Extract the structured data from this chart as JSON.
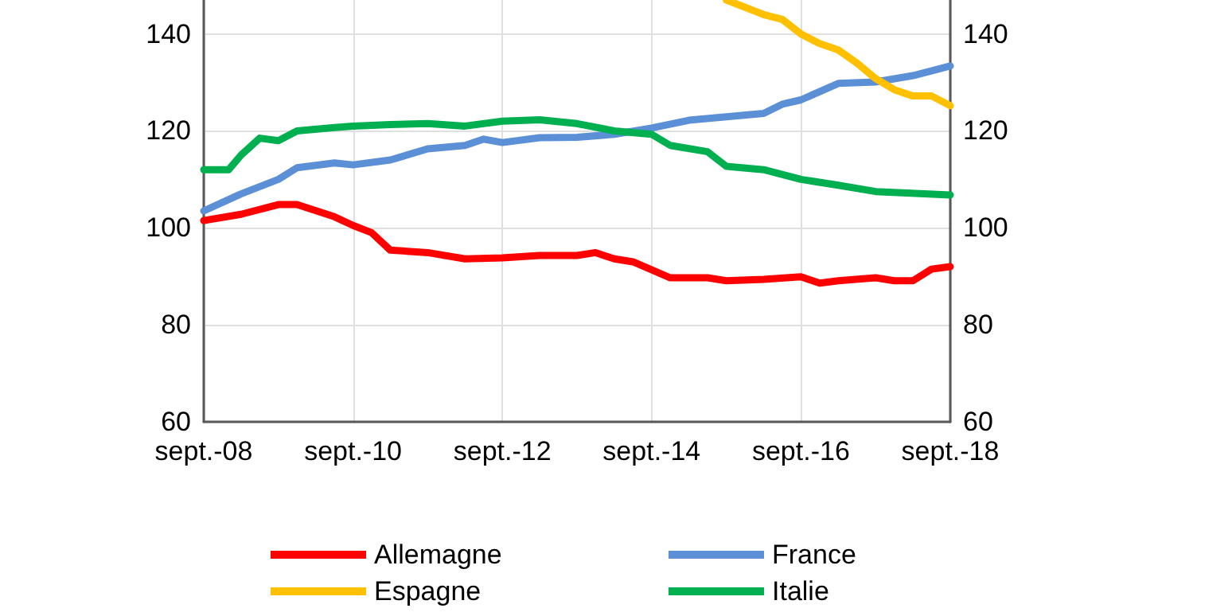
{
  "chart_data": {
    "type": "line",
    "xlim": [
      "2008-09",
      "2018-09"
    ],
    "xticks": [
      {
        "value": "2008-09",
        "label": "sept.-08"
      },
      {
        "value": "2010-09",
        "label": "sept.-10"
      },
      {
        "value": "2012-09",
        "label": "sept.-12"
      },
      {
        "value": "2014-09",
        "label": "sept.-14"
      },
      {
        "value": "2016-09",
        "label": "sept.-16"
      },
      {
        "value": "2018-09",
        "label": "sept.-18"
      }
    ],
    "ylim": [
      60,
      147
    ],
    "yticks": [
      60,
      80,
      100,
      120,
      140
    ],
    "y2lim": [
      60,
      147
    ],
    "y2ticks": [
      60,
      80,
      100,
      120,
      140
    ],
    "grid": true,
    "legend": "bottom",
    "line_style": "solid",
    "marker": "none",
    "series": [
      {
        "name": "Allemagne",
        "color": "#ff0000",
        "x": [
          "2008-09",
          "2009-03",
          "2009-09",
          "2009-12",
          "2010-06",
          "2010-09",
          "2010-12",
          "2011-03",
          "2011-09",
          "2012-03",
          "2012-09",
          "2013-03",
          "2013-09",
          "2013-12",
          "2014-03",
          "2014-06",
          "2014-12",
          "2015-06",
          "2015-09",
          "2016-03",
          "2016-09",
          "2016-12",
          "2017-03",
          "2017-09",
          "2017-12",
          "2018-03",
          "2018-06",
          "2018-09"
        ],
        "values": [
          101.5,
          102.8,
          104.8,
          104.8,
          102.3,
          100.5,
          99,
          95.4,
          94.9,
          93.6,
          93.8,
          94.3,
          94.3,
          94.9,
          93.6,
          93,
          89.7,
          89.7,
          89.1,
          89.4,
          89.9,
          88.6,
          89.1,
          89.7,
          89.1,
          89.1,
          91.5,
          92
        ]
      },
      {
        "name": "France",
        "color": "#5b8fd6",
        "x": [
          "2008-09",
          "2009-03",
          "2009-09",
          "2009-12",
          "2010-06",
          "2010-09",
          "2011-03",
          "2011-09",
          "2012-03",
          "2012-06",
          "2012-09",
          "2013-03",
          "2013-09",
          "2014-03",
          "2014-09",
          "2015-03",
          "2015-09",
          "2016-03",
          "2016-06",
          "2016-09",
          "2017-03",
          "2017-09",
          "2018-03",
          "2018-09"
        ],
        "values": [
          103.5,
          107,
          110,
          112.4,
          113.4,
          113,
          114,
          116.3,
          117,
          118.3,
          117.6,
          118.6,
          118.7,
          119.3,
          120.6,
          122.2,
          122.9,
          123.6,
          125.5,
          126.4,
          129.8,
          130.1,
          131.4,
          133.4
        ]
      },
      {
        "name": "Espagne",
        "color": "#ffc000",
        "x": [
          "2015-09",
          "2016-03",
          "2016-06",
          "2016-09",
          "2016-12",
          "2017-03",
          "2017-06",
          "2017-09",
          "2017-12",
          "2018-03",
          "2018-06",
          "2018-09"
        ],
        "values": [
          147,
          144,
          143,
          140,
          138,
          136.7,
          134,
          130.8,
          128.5,
          127.2,
          127.2,
          125.2
        ]
      },
      {
        "name": "Italie",
        "color": "#00b050",
        "x": [
          "2008-09",
          "2009-01",
          "2009-03",
          "2009-06",
          "2009-09",
          "2009-12",
          "2010-06",
          "2010-09",
          "2011-03",
          "2011-09",
          "2012-03",
          "2012-09",
          "2013-03",
          "2013-09",
          "2014-03",
          "2014-09",
          "2014-12",
          "2015-06",
          "2015-09",
          "2016-03",
          "2016-09",
          "2017-03",
          "2017-09",
          "2018-09"
        ],
        "values": [
          112,
          112,
          115,
          118.5,
          118,
          120,
          120.7,
          121,
          121.3,
          121.5,
          121,
          122,
          122.3,
          121.5,
          120,
          119.3,
          117,
          115.7,
          112.7,
          112,
          110,
          108.8,
          107.5,
          106.8
        ]
      }
    ]
  }
}
